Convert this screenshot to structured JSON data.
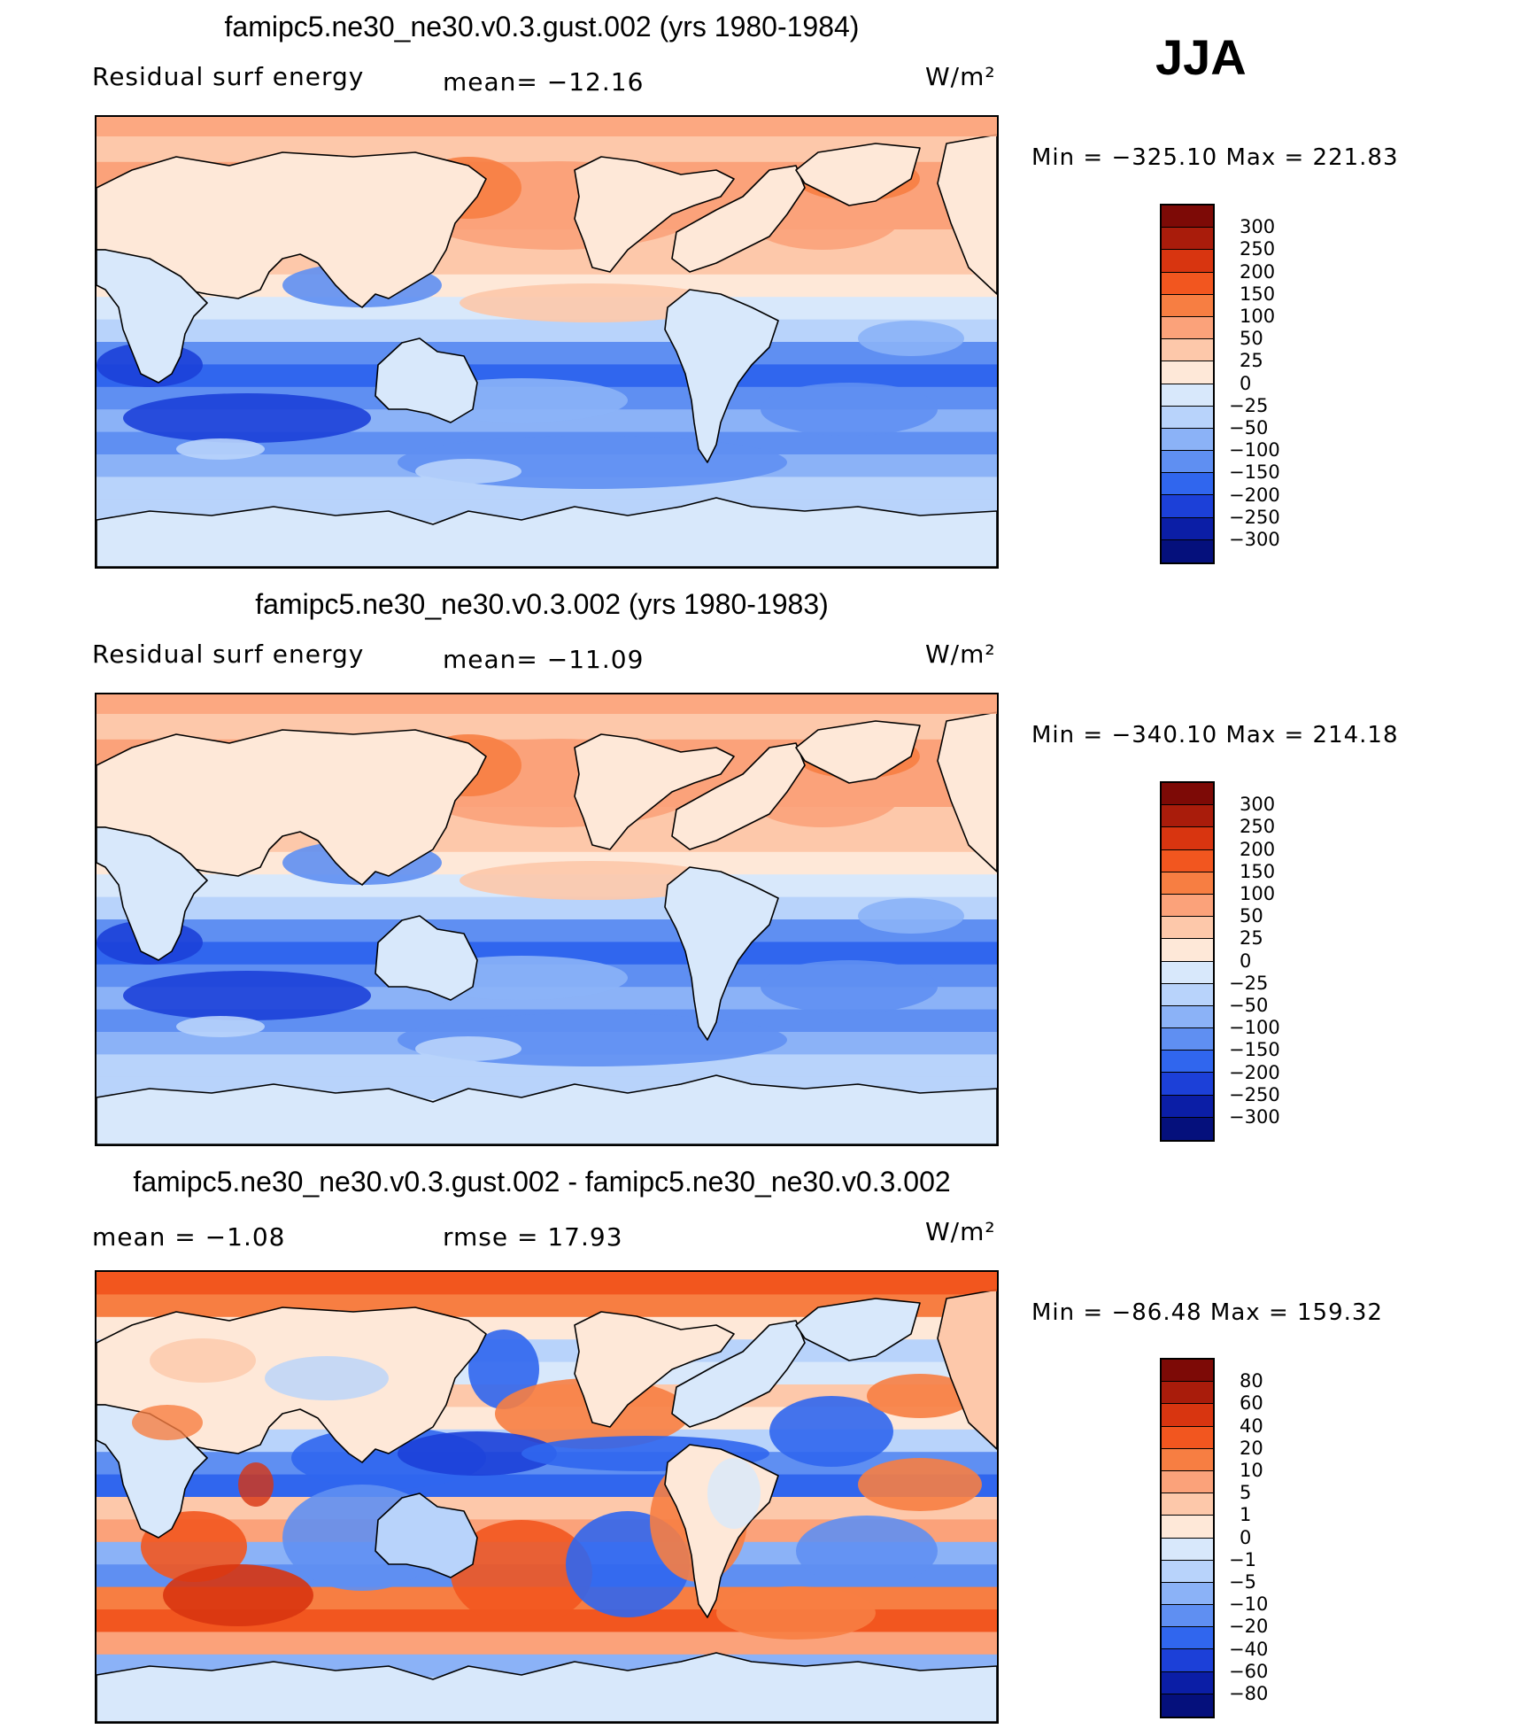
{
  "season": "JJA",
  "panels": [
    {
      "title": "famipc5.ne30_ne30.v0.3.gust.002 (yrs 1980-1984)",
      "left_label": "Residual surf energy",
      "mid_label": "mean=  −12.16",
      "units": "W/m²",
      "minmax": "Min  =  −325.10  Max  =  221.83",
      "colorbar_labels": [
        "300",
        "250",
        "200",
        "150",
        "100",
        "50",
        "25",
        "0",
        "−25",
        "−50",
        "−100",
        "−150",
        "−200",
        "−250",
        "−300"
      ]
    },
    {
      "title": "famipc5.ne30_ne30.v0.3.002 (yrs 1980-1983)",
      "left_label": "Residual surf energy",
      "mid_label": "mean=  −11.09",
      "units": "W/m²",
      "minmax": "Min  =  −340.10  Max  =  214.18",
      "colorbar_labels": [
        "300",
        "250",
        "200",
        "150",
        "100",
        "50",
        "25",
        "0",
        "−25",
        "−50",
        "−100",
        "−150",
        "−200",
        "−250",
        "−300"
      ]
    },
    {
      "title": "famipc5.ne30_ne30.v0.3.gust.002 - famipc5.ne30_ne30.v0.3.002",
      "left_label": "mean  =    −1.08",
      "mid_label": "rmse  =    17.93",
      "units": "W/m²",
      "minmax": "Min  =  −86.48  Max  =  159.32",
      "colorbar_labels": [
        "80",
        "60",
        "40",
        "20",
        "10",
        "5",
        "1",
        "0",
        "−1",
        "−5",
        "−10",
        "−20",
        "−40",
        "−60",
        "−80"
      ]
    }
  ],
  "colors": {
    "scale": [
      "#7d0a06",
      "#a91c0b",
      "#d83510",
      "#f2561f",
      "#f77e42",
      "#fba27a",
      "#fdc8aa",
      "#fee8d8",
      "#d8e8fb",
      "#b8d3fb",
      "#8bb2f7",
      "#5f8ff2",
      "#3066ee",
      "#1c40d8",
      "#0b1ea6",
      "#05107c"
    ],
    "land": "#fee8d8",
    "antarctica": "#d8e8fb"
  }
}
